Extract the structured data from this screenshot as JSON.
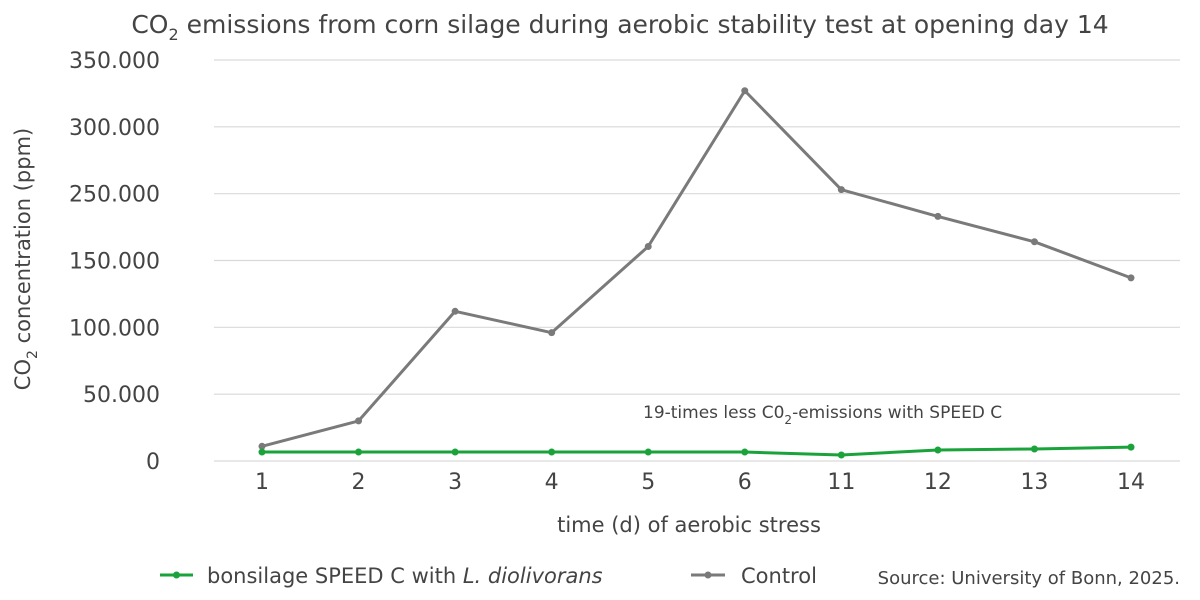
{
  "chart_data": {
    "type": "line",
    "title": {
      "main": "CO",
      "sub": "2",
      "rest": " emissions from corn silage during aerobic stability test at opening day 14"
    },
    "xlabel": "time (d) of aerobic stress",
    "ylabel": {
      "main": "CO",
      "sub": "2",
      "rest": " concentration (ppm)"
    },
    "categories": [
      "1",
      "2",
      "3",
      "4",
      "5",
      "6",
      "11",
      "12",
      "13",
      "14"
    ],
    "y_tick_labels": [
      "0",
      "50.000",
      "100.000",
      "150.000",
      "250.000",
      "300.000",
      "350.000"
    ],
    "y_tick_values": [
      0,
      50000,
      100000,
      150000,
      250000,
      300000,
      350000
    ],
    "ylim": [
      0,
      350000
    ],
    "grid": true,
    "series": [
      {
        "name": "bonsilage SPEED C with L. diolivorans",
        "name_plain": "bonsilage SPEED C with ",
        "name_italic": "L. diolivorans",
        "color": "#1aa33a",
        "values": [
          6700,
          6700,
          6700,
          6700,
          6700,
          6700,
          4500,
          8200,
          9000,
          10400
        ]
      },
      {
        "name": "Control",
        "color": "#7a7a7a",
        "values": [
          11000,
          30000,
          112000,
          96000,
          171000,
          327000,
          253000,
          216000,
          178000,
          137000
        ]
      }
    ],
    "annotation": {
      "pre": "19-times less C0",
      "sub": "2",
      "post": "-emissions with SPEED C"
    },
    "legend_position": "bottom",
    "source": "Source: University of Bonn, 2025."
  }
}
